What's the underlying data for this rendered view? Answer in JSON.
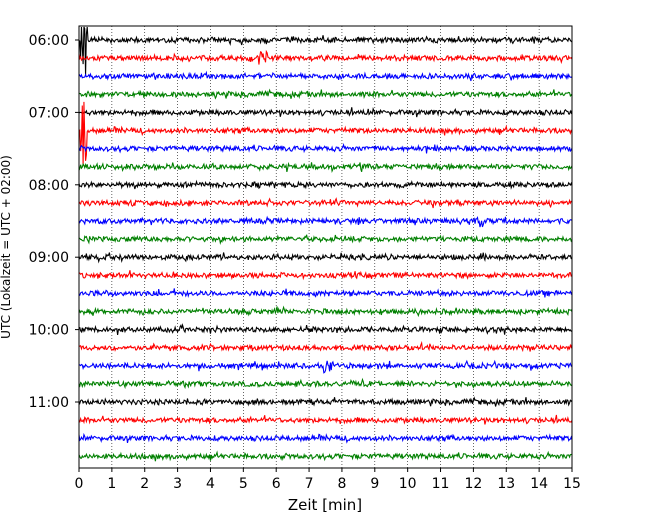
{
  "chart_data": {
    "type": "line",
    "title": "",
    "xlabel": "Zeit  [min]",
    "ylabel": "UTC (Lokalzeit = UTC + 02:00)",
    "xlim": [
      0,
      15
    ],
    "x_ticks": [
      "0",
      "1",
      "2",
      "3",
      "4",
      "5",
      "6",
      "7",
      "8",
      "9",
      "10",
      "11",
      "12",
      "13",
      "14",
      "15"
    ],
    "y_ticks": [
      {
        "label": "06:00",
        "row": 0
      },
      {
        "label": "07:00",
        "row": 4
      },
      {
        "label": "08:00",
        "row": 8
      },
      {
        "label": "09:00",
        "row": 12
      },
      {
        "label": "10:00",
        "row": 16
      },
      {
        "label": "11:00",
        "row": 20
      }
    ],
    "row_interval_min": 15,
    "row_count": 24,
    "series_colors": [
      "#000000",
      "#ff0000",
      "#0000ff",
      "#008000"
    ],
    "grid": {
      "x": true,
      "y": false,
      "style": "dotted"
    },
    "events": [
      {
        "row": 0,
        "x": 0.15,
        "amplitude": "large"
      },
      {
        "row": 1,
        "x": 5.6,
        "amplitude": "medium"
      },
      {
        "row": 5,
        "x": 0.15,
        "amplitude": "large"
      },
      {
        "row": 10,
        "x": 12.2,
        "amplitude": "medium"
      },
      {
        "row": 18,
        "x": 7.6,
        "amplitude": "medium"
      }
    ]
  }
}
